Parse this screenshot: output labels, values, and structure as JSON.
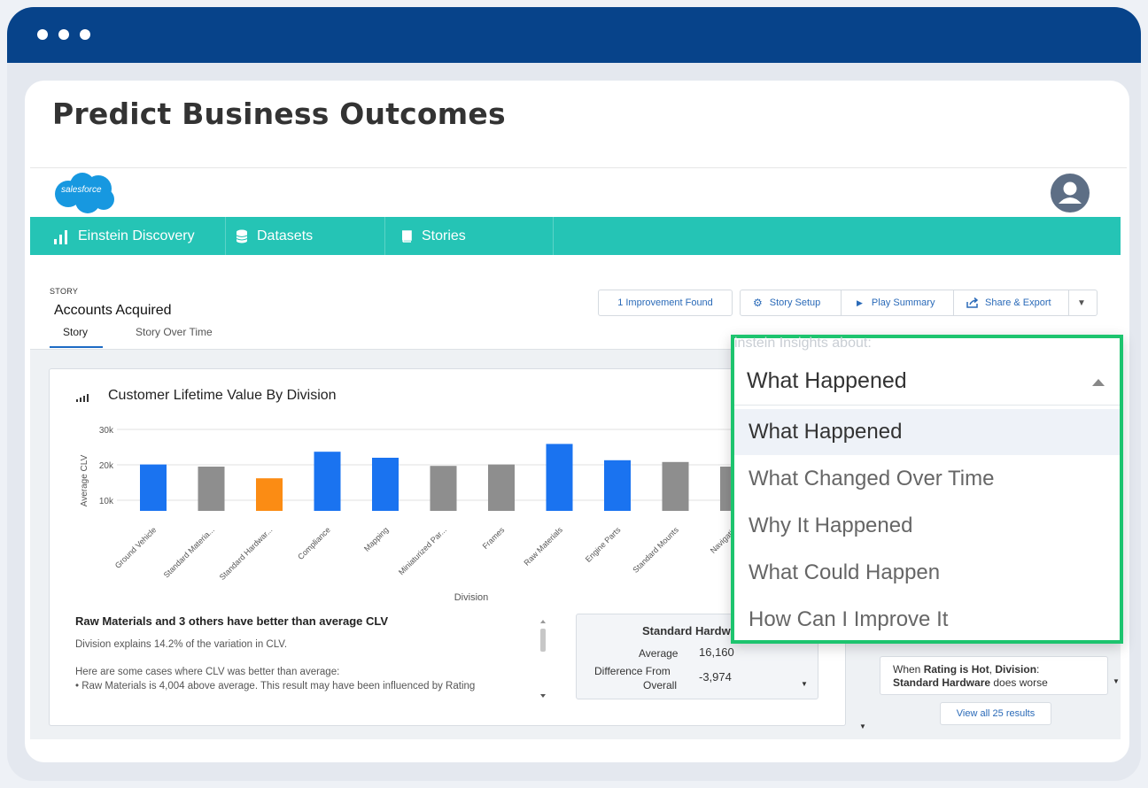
{
  "page_title": "Predict Business Outcomes",
  "header": {
    "logo_text": "salesforce"
  },
  "nav": {
    "items": [
      {
        "label": "Einstein Discovery",
        "icon": "bar-chart-icon"
      },
      {
        "label": "Datasets",
        "icon": "database-icon"
      },
      {
        "label": "Stories",
        "icon": "book-icon"
      }
    ]
  },
  "story": {
    "tag": "STORY",
    "name": "Accounts Acquired",
    "tabs": [
      "Story",
      "Story Over Time"
    ]
  },
  "toolbar": {
    "improvement": "1 Improvement Found",
    "setup": "Story Setup",
    "play": "Play Summary",
    "share": "Share & Export"
  },
  "chart": {
    "title": "Customer Lifetime Value By Division"
  },
  "chart_data": {
    "type": "bar",
    "title": "Customer Lifetime Value By Division",
    "xlabel": "Division",
    "ylabel": "Average CLV",
    "ylim": [
      5000,
      30000
    ],
    "ytick_labels": [
      "30k",
      "20k",
      "10k"
    ],
    "ytick_values": [
      30000,
      20000,
      10000
    ],
    "grid": true,
    "categories": [
      "Ground Vehicle",
      "Standard Materia...",
      "Standard Hardwar...",
      "Compliance",
      "Mapping",
      "Miniaturized Par...",
      "Frames",
      "Raw Materials",
      "Engine Parts",
      "Standard Mounts",
      "Navigatio"
    ],
    "values": [
      20100,
      19500,
      16200,
      23700,
      22000,
      19700,
      20100,
      25900,
      21300,
      20800,
      19500
    ],
    "bar_base": 7000,
    "colors": [
      "#1a73f0",
      "#8e8e8e",
      "#fb8c14",
      "#1a73f0",
      "#1a73f0",
      "#8e8e8e",
      "#8e8e8e",
      "#1a73f0",
      "#1a73f0",
      "#8e8e8e",
      "#8e8e8e"
    ]
  },
  "insight": {
    "headline": "Raw Materials and 3 others have better than average CLV",
    "line1": "Division explains 14.2% of the variation in CLV.",
    "line2": "Here are some cases where CLV was better than average:",
    "line3": "• Raw Materials is 4,004 above average. This result may have been influenced by Rating"
  },
  "stat": {
    "title": "Standard Hardw",
    "average_label": "Average",
    "average_value": "16,160",
    "diff_label_1": "Difference From",
    "diff_label_2": "Overall",
    "diff_value": "-3,974"
  },
  "right": {
    "result_prefix": "When ",
    "result_b1": "Rating is Hot",
    "result_mid": ", ",
    "result_b2": "Division",
    "result_colon": ":",
    "result_b3": "Standard Hardware",
    "result_suffix": " does worse",
    "view_all": "View all 25 results"
  },
  "dropdown": {
    "hint": "instein Insights about:",
    "selected": "What Happened",
    "options": [
      "What Happened",
      "What Changed Over Time",
      "Why It Happened",
      "What Could Happen",
      "How Can I Improve It"
    ]
  },
  "colors": {
    "titlebar": "#07438a",
    "nav": "#25c4b5",
    "highlight": "#1dc46e",
    "link": "#2a6ab8"
  }
}
